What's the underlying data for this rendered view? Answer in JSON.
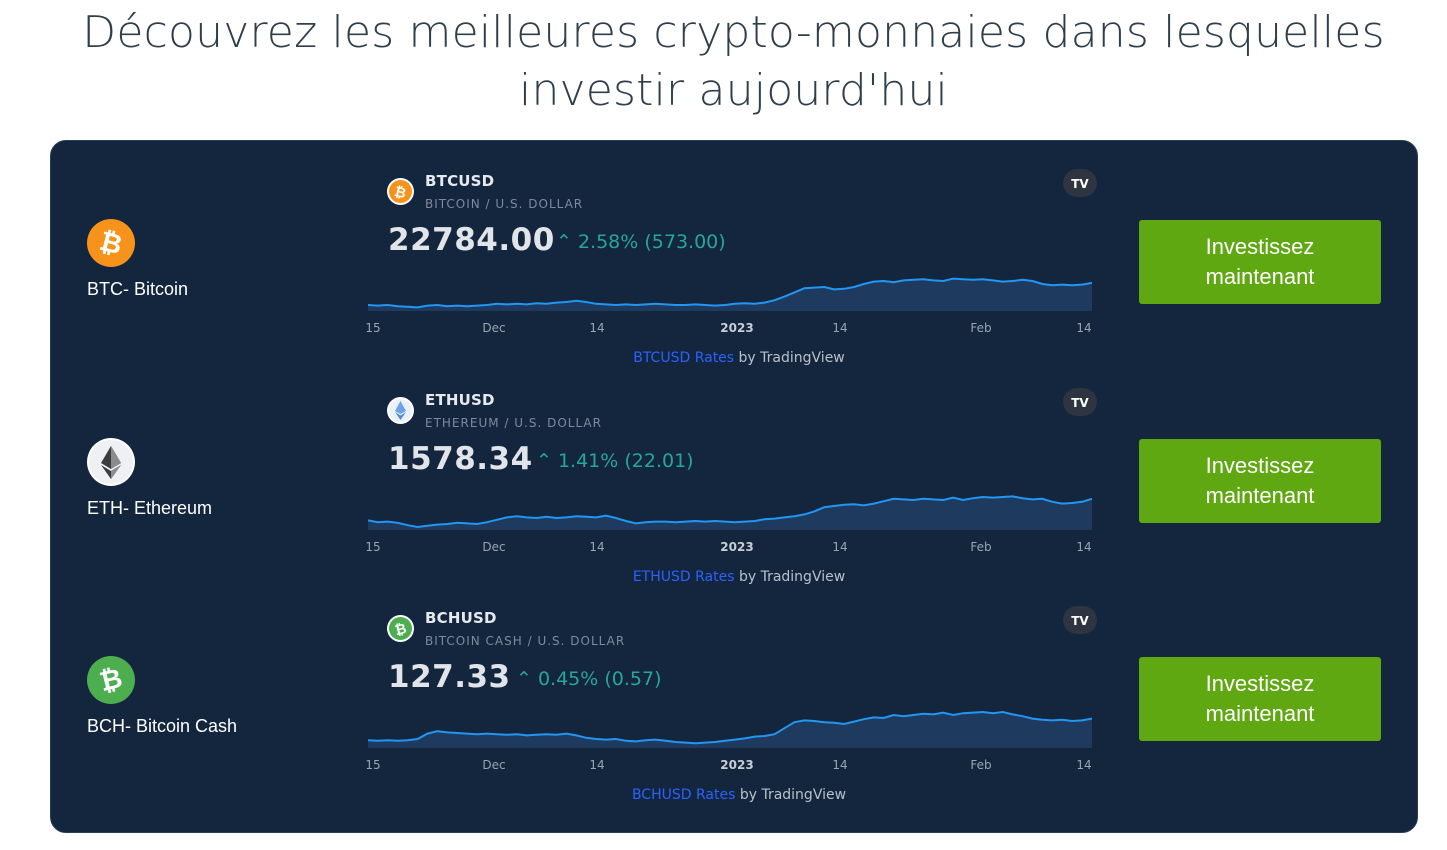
{
  "headline": {
    "line1": "Découvrez les meilleures crypto-monnaies dans lesquelles",
    "line2": "investir aujourd'hui"
  },
  "cta_label": "Investissez maintenant",
  "colors": {
    "panel_bg": "#14263d",
    "cta_green": "#5fa811",
    "positive_change": "#26a69a",
    "chart_line": "#2196f3",
    "link_blue": "#2962ff",
    "btc_orange": "#f7931a",
    "bch_green": "#4cae4f"
  },
  "rows": [
    {
      "coin_name": "BTC- Bitcoin",
      "logo_icon": "bitcoin-icon",
      "symbol": "BTCUSD",
      "description": "BITCOIN / U.S. DOLLAR",
      "price": "22784.00",
      "change": "2.58% (573.00)",
      "axis_ticks": [
        "15",
        "Dec",
        "14",
        "2023",
        "14",
        "Feb",
        "14"
      ],
      "credit_link": "BTCUSD Rates",
      "credit_suffix": " by TradingView",
      "series": [
        0.1,
        0.09,
        0.1,
        0.08,
        0.07,
        0.06,
        0.09,
        0.1,
        0.08,
        0.09,
        0.08,
        0.09,
        0.1,
        0.12,
        0.11,
        0.12,
        0.11,
        0.13,
        0.12,
        0.14,
        0.15,
        0.17,
        0.15,
        0.12,
        0.11,
        0.1,
        0.11,
        0.1,
        0.11,
        0.12,
        0.11,
        0.1,
        0.1,
        0.11,
        0.1,
        0.09,
        0.1,
        0.12,
        0.13,
        0.12,
        0.14,
        0.18,
        0.24,
        0.31,
        0.38,
        0.39,
        0.4,
        0.36,
        0.37,
        0.4,
        0.45,
        0.49,
        0.5,
        0.48,
        0.51,
        0.52,
        0.53,
        0.51,
        0.5,
        0.54,
        0.53,
        0.52,
        0.53,
        0.51,
        0.49,
        0.5,
        0.52,
        0.5,
        0.45,
        0.43,
        0.44,
        0.43,
        0.44,
        0.47
      ]
    },
    {
      "coin_name": "ETH- Ethereum",
      "logo_icon": "ethereum-icon",
      "symbol": "ETHUSD",
      "description": "ETHEREUM / U.S. DOLLAR",
      "price": "1578.34",
      "change": "1.41% (22.01)",
      "axis_ticks": [
        "15",
        "Dec",
        "14",
        "2023",
        "14",
        "Feb",
        "14"
      ],
      "credit_link": "ETHUSD Rates",
      "credit_suffix": " by TradingView",
      "series": [
        0.16,
        0.13,
        0.14,
        0.12,
        0.08,
        0.05,
        0.07,
        0.09,
        0.1,
        0.12,
        0.11,
        0.1,
        0.13,
        0.17,
        0.21,
        0.23,
        0.21,
        0.2,
        0.22,
        0.2,
        0.21,
        0.23,
        0.22,
        0.21,
        0.24,
        0.2,
        0.15,
        0.11,
        0.13,
        0.14,
        0.14,
        0.13,
        0.14,
        0.15,
        0.14,
        0.15,
        0.14,
        0.13,
        0.14,
        0.15,
        0.18,
        0.19,
        0.21,
        0.23,
        0.26,
        0.31,
        0.38,
        0.4,
        0.42,
        0.43,
        0.41,
        0.44,
        0.48,
        0.52,
        0.51,
        0.5,
        0.52,
        0.51,
        0.5,
        0.54,
        0.5,
        0.53,
        0.55,
        0.54,
        0.55,
        0.56,
        0.53,
        0.51,
        0.52,
        0.47,
        0.44,
        0.45,
        0.47,
        0.52
      ]
    },
    {
      "coin_name": "BCH- Bitcoin Cash",
      "logo_icon": "bitcoin-cash-icon",
      "symbol": "BCHUSD",
      "description": "BITCOIN CASH / U.S. DOLLAR",
      "price": "127.33",
      "change": "0.45% (0.57)",
      "axis_ticks": [
        "15",
        "Dec",
        "14",
        "2023",
        "14",
        "Feb",
        "14"
      ],
      "credit_link": "BCHUSD Rates",
      "credit_suffix": " by TradingView",
      "series": [
        0.13,
        0.12,
        0.13,
        0.12,
        0.13,
        0.15,
        0.24,
        0.28,
        0.26,
        0.25,
        0.24,
        0.23,
        0.24,
        0.23,
        0.22,
        0.23,
        0.21,
        0.22,
        0.23,
        0.22,
        0.24,
        0.21,
        0.17,
        0.15,
        0.14,
        0.15,
        0.12,
        0.11,
        0.13,
        0.14,
        0.12,
        0.1,
        0.09,
        0.08,
        0.09,
        0.1,
        0.12,
        0.14,
        0.16,
        0.19,
        0.2,
        0.23,
        0.33,
        0.43,
        0.46,
        0.45,
        0.43,
        0.42,
        0.4,
        0.44,
        0.48,
        0.51,
        0.5,
        0.55,
        0.53,
        0.55,
        0.57,
        0.56,
        0.59,
        0.55,
        0.58,
        0.59,
        0.6,
        0.58,
        0.6,
        0.56,
        0.53,
        0.49,
        0.47,
        0.46,
        0.47,
        0.45,
        0.46,
        0.49
      ]
    }
  ]
}
